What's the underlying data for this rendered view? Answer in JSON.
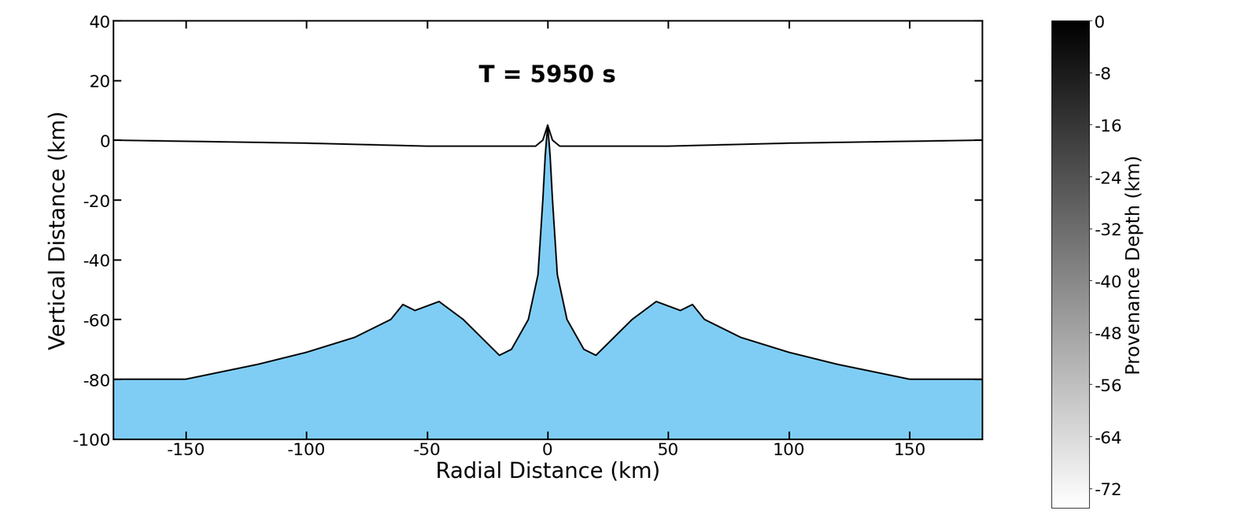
{
  "chart_data": {
    "type": "area",
    "title": "T = 5950 s",
    "x_label": "Radial Distance (km)",
    "y_label": "Vertical Distance (km)",
    "x": [
      -180,
      -150,
      -120,
      -100,
      -80,
      -65,
      -60,
      -55,
      -45,
      -35,
      -25,
      -20,
      -15,
      -8,
      -4,
      -2,
      -1,
      0,
      1,
      2,
      4,
      8,
      15,
      20,
      25,
      35,
      45,
      55,
      60,
      65,
      80,
      100,
      120,
      150,
      180
    ],
    "series": [
      {
        "type": "area",
        "color": "#7fcdf5",
        "values": [
          -80,
          -80,
          -75,
          -71,
          -66,
          -60,
          -55,
          -57,
          -54,
          -60,
          -68,
          -72,
          -70,
          -60,
          -45,
          -20,
          -5,
          5,
          -5,
          -20,
          -45,
          -60,
          -70,
          -72,
          -68,
          -60,
          -54,
          -57,
          -55,
          -60,
          -66,
          -71,
          -75,
          -80,
          -80
        ]
      },
      {
        "type": "line",
        "color": "#000000",
        "x": [
          -180,
          -100,
          -50,
          -5,
          -2,
          0,
          2,
          5,
          50,
          100,
          180
        ],
        "values": [
          0,
          -1,
          -2,
          -2,
          0,
          5,
          0,
          -2,
          -2,
          -1,
          0
        ]
      }
    ],
    "xlim": [
      -180,
      180
    ],
    "ylim": [
      -100,
      40
    ],
    "xticks": [
      -150,
      -100,
      -50,
      0,
      50,
      100,
      150
    ],
    "yticks": [
      -100,
      -80,
      -60,
      -40,
      -20,
      0,
      20,
      40
    ],
    "grid": false,
    "colorbar": {
      "label": "Provenance Depth (km)",
      "range": [
        -75,
        0
      ],
      "ticks": [
        0,
        -8,
        -16,
        -24,
        -32,
        -40,
        -48,
        -56,
        -64,
        -72
      ]
    }
  }
}
